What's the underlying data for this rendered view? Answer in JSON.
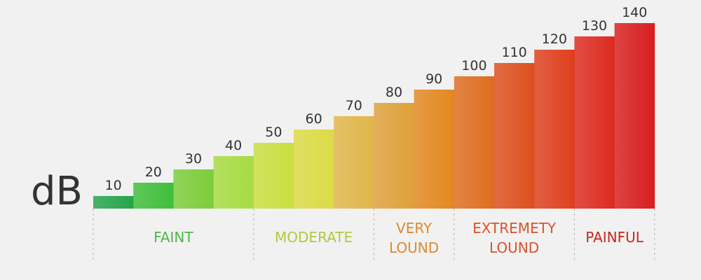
{
  "unit": "dB",
  "chart_data": {
    "type": "bar",
    "categories": [
      "10",
      "20",
      "30",
      "40",
      "50",
      "60",
      "70",
      "80",
      "90",
      "100",
      "110",
      "120",
      "130",
      "140"
    ],
    "values": [
      10,
      20,
      30,
      40,
      50,
      60,
      70,
      80,
      90,
      100,
      110,
      120,
      130,
      140
    ],
    "data_labels": [
      "10",
      "20",
      "30",
      "40",
      "50",
      "60",
      "70",
      "80",
      "90",
      "100",
      "110",
      "120",
      "130",
      "140"
    ],
    "bar_colors": [
      "#24a44a",
      "#3fbf3a",
      "#7ccd3a",
      "#a6dc42",
      "#c9df3f",
      "#dcdb45",
      "#e1b64a",
      "#e0a03a",
      "#e3881f",
      "#e06c1f",
      "#dc4f1e",
      "#df3f1d",
      "#dd2a1e",
      "#d81e1e"
    ],
    "ylim": [
      0,
      140
    ],
    "zones": [
      {
        "name": "faint",
        "lines": [
          "FAINT"
        ],
        "from": 0,
        "to": 3,
        "color": "#4db848"
      },
      {
        "name": "moderate",
        "lines": [
          "MODERATE"
        ],
        "from": 4,
        "to": 6,
        "color": "#b7c63f"
      },
      {
        "name": "very-lound",
        "lines": [
          "VERY",
          "LOUND"
        ],
        "from": 7,
        "to": 8,
        "color": "#dd8a2c"
      },
      {
        "name": "extremety-lound",
        "lines": [
          "EXTREMETY",
          "LOUND"
        ],
        "from": 9,
        "to": 11,
        "color": "#d9532c"
      },
      {
        "name": "painful",
        "lines": [
          "PAINFUL"
        ],
        "from": 12,
        "to": 13,
        "color": "#c8271f"
      }
    ]
  }
}
